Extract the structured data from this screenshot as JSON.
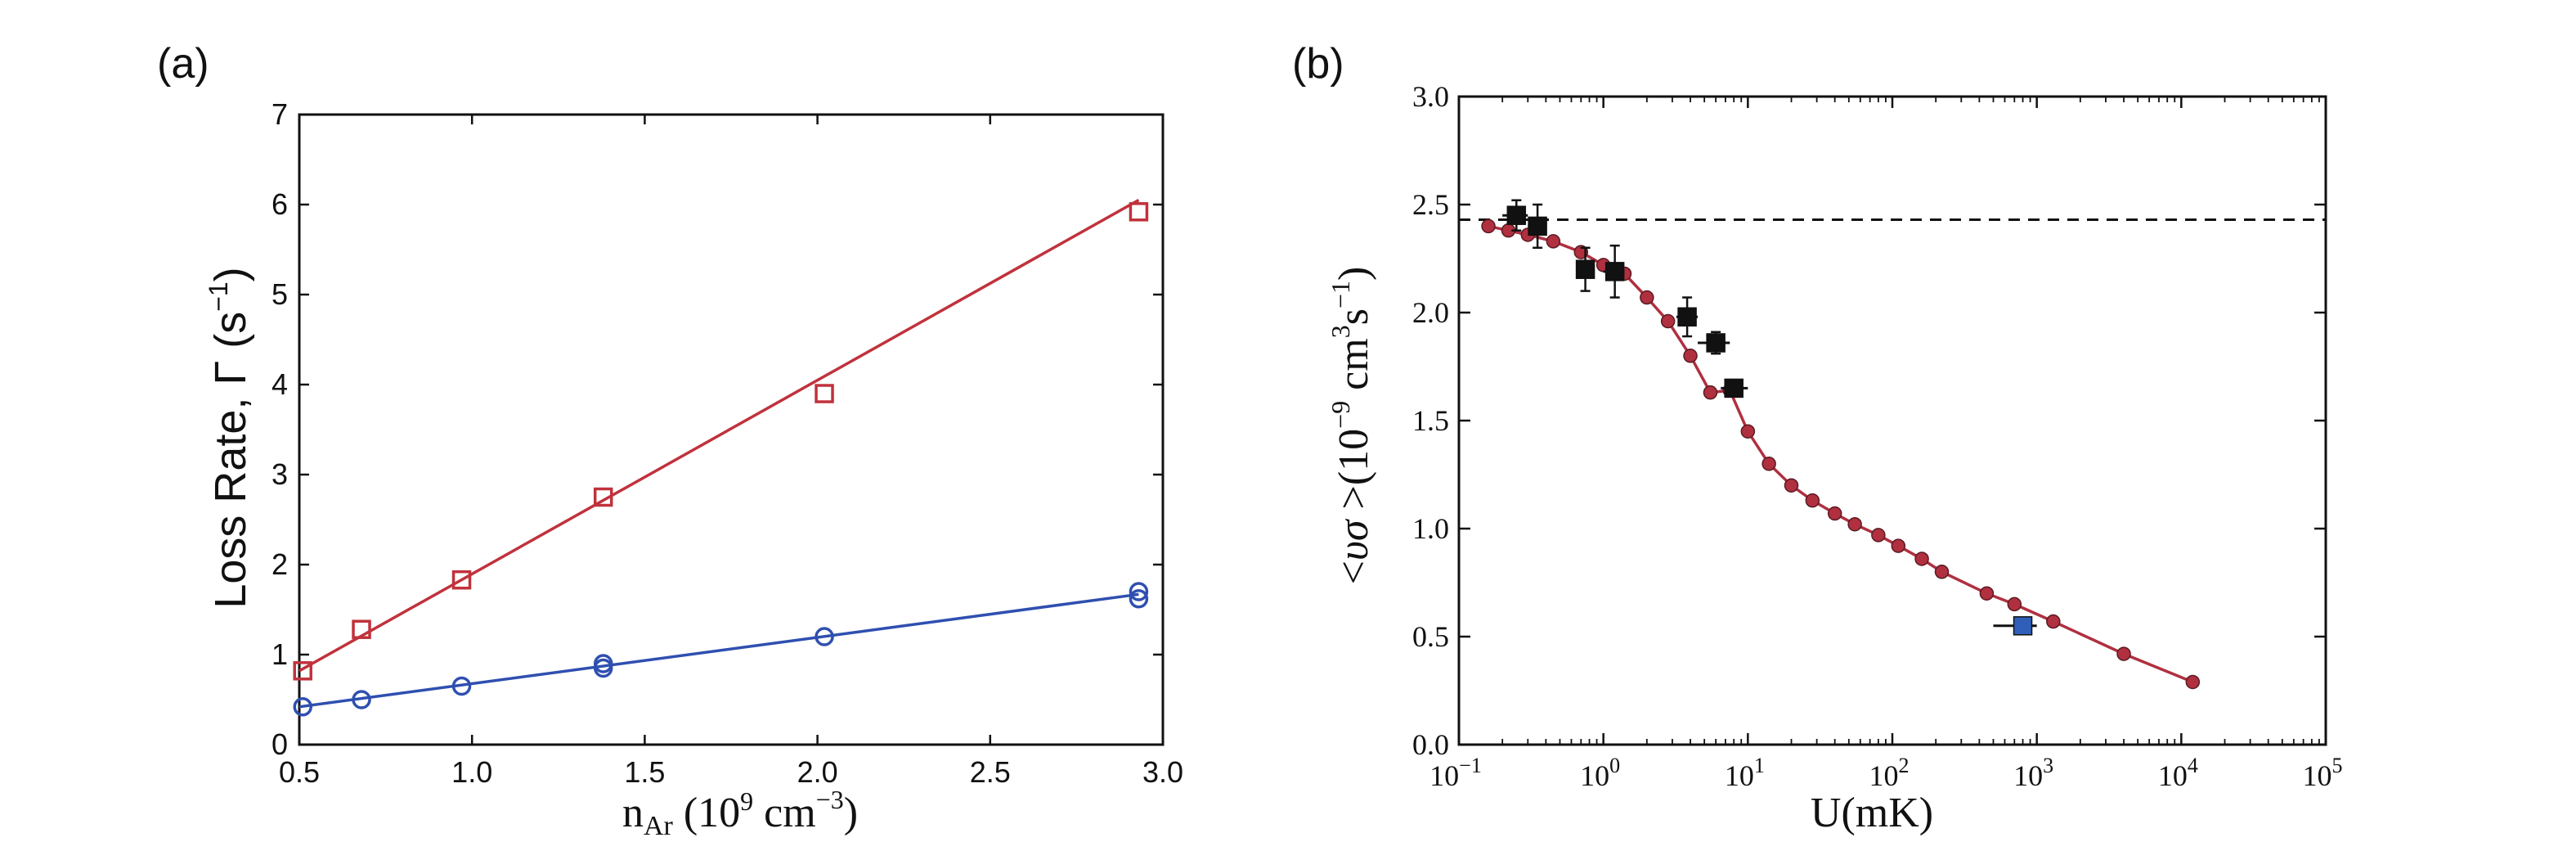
{
  "chart_data": [
    {
      "panel_label": "(a)",
      "type": "scatter",
      "xlabel": {
        "base": "n",
        "sub": "Ar",
        "open": " (10",
        "exp1": "9",
        "mid": " cm",
        "exp2": "−3",
        "close": ")"
      },
      "ylabel": {
        "main": "Loss Rate, Γ (s",
        "exp": "−1",
        "close": ")"
      },
      "xlim": [
        0.5,
        3.0
      ],
      "ylim": [
        0,
        7
      ],
      "xticks": [
        "0.5",
        "1.0",
        "1.5",
        "2.0",
        "2.5",
        "3.0"
      ],
      "yticks": [
        "0",
        "1",
        "2",
        "3",
        "4",
        "5",
        "6",
        "7"
      ],
      "series": [
        {
          "marker": "square",
          "color": "#c0323c",
          "x": [
            0.51,
            0.68,
            0.97,
            1.38,
            2.02,
            2.93
          ],
          "y": [
            0.82,
            1.28,
            1.83,
            2.75,
            3.9,
            5.92
          ],
          "fit": {
            "x": [
              0.5,
              2.93
            ],
            "y": [
              0.82,
              6.05
            ]
          }
        },
        {
          "marker": "circle",
          "color": "#2f4fb0",
          "x": [
            0.51,
            0.68,
            0.97,
            1.38,
            1.38,
            2.02,
            2.93,
            2.93
          ],
          "y": [
            0.42,
            0.5,
            0.65,
            0.85,
            0.9,
            1.2,
            1.62,
            1.7
          ],
          "fit": {
            "x": [
              0.5,
              2.93
            ],
            "y": [
              0.42,
              1.67
            ]
          }
        }
      ]
    },
    {
      "panel_label": "(b)",
      "type": "scatter",
      "xscale": "log",
      "xlabel": "U(mK)",
      "ylabel": {
        "open": "<",
        "ital": "υσ",
        "mid": " >(10",
        "exp1": "−9",
        "unit": " cm",
        "exp2": "3",
        "unit2": "s",
        "exp3": "−1",
        "close": ")"
      },
      "xlim": [
        0.1,
        100000
      ],
      "ylim": [
        0,
        3.0
      ],
      "xticks": [
        {
          "base": "10",
          "exp": "−1"
        },
        {
          "base": "10",
          "exp": "0"
        },
        {
          "base": "10",
          "exp": "1"
        },
        {
          "base": "10",
          "exp": "2"
        },
        {
          "base": "10",
          "exp": "3"
        },
        {
          "base": "10",
          "exp": "4"
        },
        {
          "base": "10",
          "exp": "5"
        }
      ],
      "yticks": [
        "0.0",
        "0.5",
        "1.0",
        "1.5",
        "2.0",
        "2.5",
        "3.0"
      ],
      "reference_line": {
        "y": 2.43,
        "style": "dashed",
        "color": "#111111"
      },
      "curve": {
        "color": "#b03040",
        "x": [
          0.16,
          0.22,
          0.3,
          0.45,
          0.7,
          1.0,
          1.4,
          2.0,
          2.8,
          4.0,
          5.5,
          7.5,
          10,
          14,
          20,
          28,
          40,
          55,
          80,
          110,
          160,
          220,
          450,
          700,
          1300,
          4000,
          12000
        ],
        "y": [
          2.4,
          2.38,
          2.36,
          2.33,
          2.28,
          2.22,
          2.18,
          2.07,
          1.96,
          1.8,
          1.63,
          1.64,
          1.45,
          1.3,
          1.2,
          1.13,
          1.07,
          1.02,
          0.97,
          0.92,
          0.86,
          0.8,
          0.7,
          0.65,
          0.57,
          0.42,
          0.29
        ]
      },
      "points": [
        {
          "x": 0.25,
          "y": 2.45,
          "xerr": [
            0.2,
            0.3
          ],
          "yerr": 0.07,
          "color": "#111111"
        },
        {
          "x": 0.35,
          "y": 2.4,
          "xerr": [
            0.3,
            0.4
          ],
          "yerr": 0.1,
          "color": "#111111"
        },
        {
          "x": 0.75,
          "y": 2.2,
          "xerr": [
            0.65,
            0.85
          ],
          "yerr": 0.1,
          "color": "#111111"
        },
        {
          "x": 1.2,
          "y": 2.19,
          "xerr": [
            1.0,
            1.4
          ],
          "yerr": 0.12,
          "color": "#111111"
        },
        {
          "x": 3.8,
          "y": 1.98,
          "xerr": [
            3.2,
            4.5
          ],
          "yerr": 0.09,
          "color": "#111111"
        },
        {
          "x": 6.0,
          "y": 1.86,
          "xerr": [
            4.5,
            7.5
          ],
          "yerr": 0.05,
          "color": "#111111"
        },
        {
          "x": 8.0,
          "y": 1.65,
          "xerr": [
            6.5,
            10.0
          ],
          "yerr": 0.03,
          "color": "#111111"
        },
        {
          "x": 800,
          "y": 0.55,
          "xerr": [
            500,
            1000
          ],
          "yerr": 0.02,
          "color": "#2f5fb8"
        }
      ]
    }
  ]
}
